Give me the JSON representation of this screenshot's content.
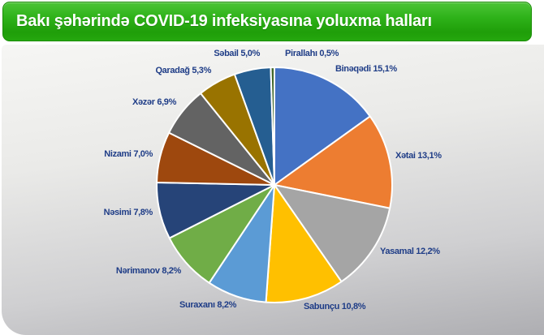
{
  "header": {
    "title": "Bakı şəhərində COVID-19 infeksiyasına yoluxma halları",
    "background_top": "#4cc437",
    "background_bottom": "#1f9e09",
    "text_color": "#ffffff"
  },
  "panel": {
    "background_top": "#f6f6f4",
    "background_bottom": "#aeaeb2"
  },
  "chart_data": {
    "type": "pie",
    "title": "Bakı şəhərində COVID-19 infeksiyasına yoluxma halları",
    "legend": "none",
    "labels_position": "outside",
    "start_angle_deg": 0,
    "direction": "clockwise",
    "label_text_color": "#1f3d87",
    "slice_border_color": "#ffffff",
    "slices": [
      {
        "name": "Binəqədi",
        "value": 15.1,
        "label": "Binəqədi 15,1%",
        "color": "#4472C4"
      },
      {
        "name": "Xətai",
        "value": 13.1,
        "label": "Xətai 13,1%",
        "color": "#ED7D31"
      },
      {
        "name": "Yasamal",
        "value": 12.2,
        "label": "Yasamal 12,2%",
        "color": "#A5A5A5"
      },
      {
        "name": "Sabunçu",
        "value": 10.8,
        "label": "Sabunçu 10,8%",
        "color": "#FFC000"
      },
      {
        "name": "Suraxanı",
        "value": 8.2,
        "label": "Suraxanı 8,2%",
        "color": "#5B9BD5"
      },
      {
        "name": "Nərimanov",
        "value": 8.2,
        "label": "Nərimanov 8,2%",
        "color": "#70AD47"
      },
      {
        "name": "Nəsimi",
        "value": 7.8,
        "label": "Nəsimi 7,8%",
        "color": "#264478"
      },
      {
        "name": "Nizami",
        "value": 7.0,
        "label": "Nizami 7,0%",
        "color": "#9E480E"
      },
      {
        "name": "Xəzər",
        "value": 6.9,
        "label": "Xəzər 6,9%",
        "color": "#636363"
      },
      {
        "name": "Qaradağ",
        "value": 5.3,
        "label": "Qaradağ 5,3%",
        "color": "#997300"
      },
      {
        "name": "Səbail",
        "value": 5.0,
        "label": "Səbail 5,0%",
        "color": "#255E91"
      },
      {
        "name": "Pirallahı",
        "value": 0.5,
        "label": "Pirallahı 0,5%",
        "color": "#43682B"
      }
    ]
  }
}
